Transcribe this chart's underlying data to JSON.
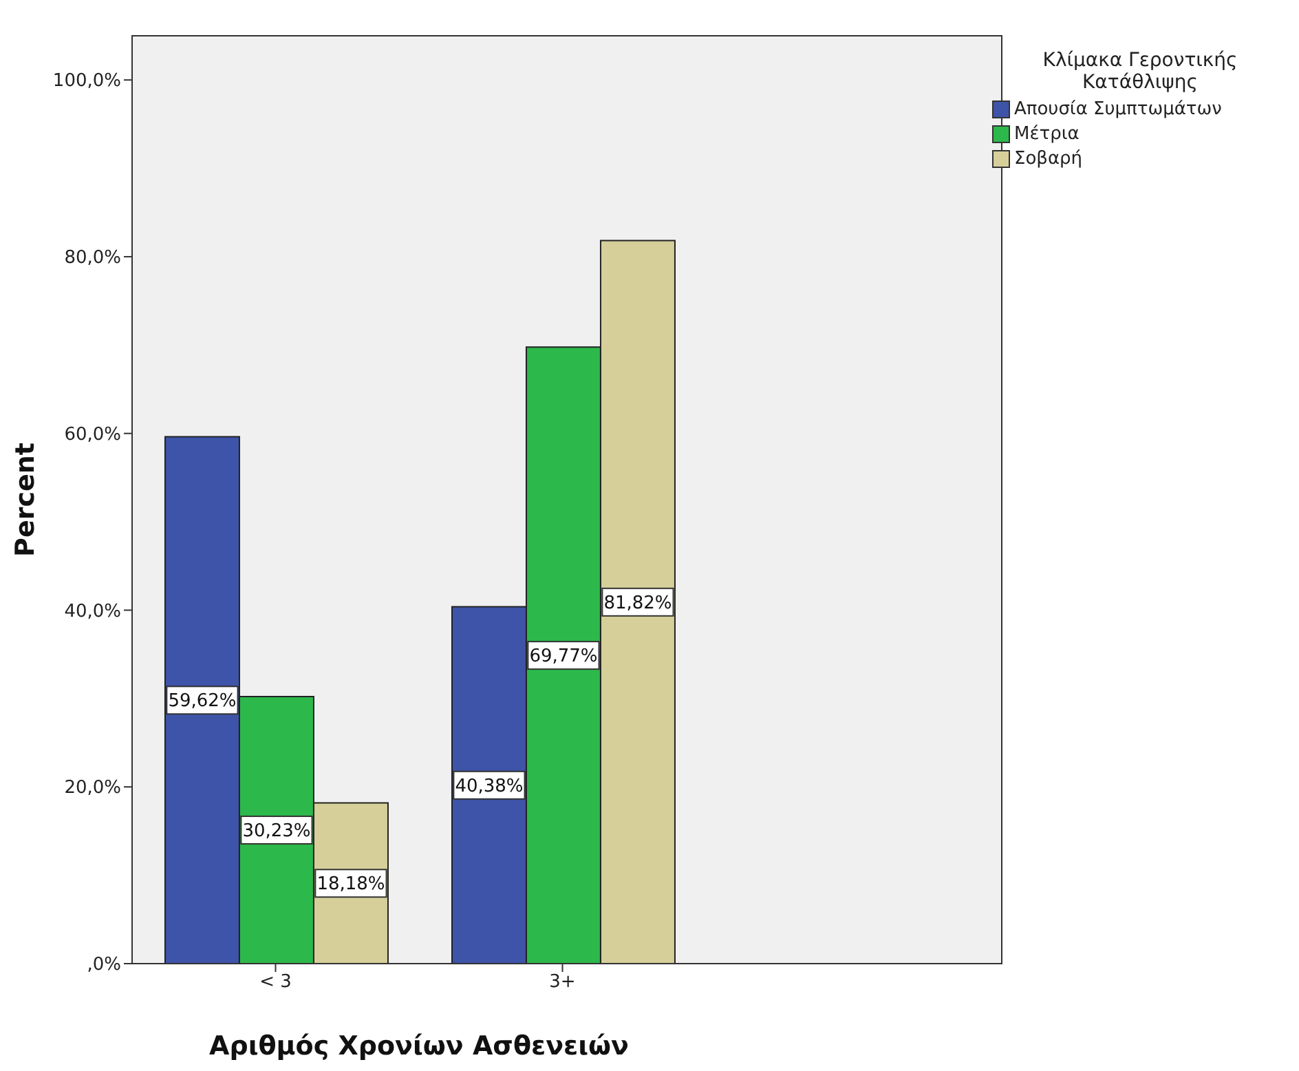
{
  "chart_data": {
    "type": "bar",
    "xlabel": "Αριθμός Χρονίων Ασθενειών",
    "ylabel": "Percent",
    "legend_title": "Κλίμακα Γεροντικής Κατάθλιψης",
    "categories": [
      "< 3",
      "3+"
    ],
    "series": [
      {
        "name": "Απουσία Συμπτωμάτων",
        "color": "#3e54a8",
        "values": [
          59.62,
          40.38
        ],
        "value_labels": [
          "59,62%",
          "40,38%"
        ]
      },
      {
        "name": "Μέτρια",
        "color": "#2db84b",
        "values": [
          30.23,
          69.77
        ],
        "value_labels": [
          "30,23%",
          "69,77%"
        ]
      },
      {
        "name": "Σοβαρή",
        "color": "#d6cf9a",
        "values": [
          18.18,
          81.82
        ],
        "value_labels": [
          "18,18%",
          "81,82%"
        ]
      }
    ],
    "ylim": [
      0,
      105
    ],
    "yticks": [
      {
        "value": 0,
        "label": ",0%"
      },
      {
        "value": 20,
        "label": "20,0%"
      },
      {
        "value": 40,
        "label": "40,0%"
      },
      {
        "value": 60,
        "label": "60,0%"
      },
      {
        "value": 80,
        "label": "80,0%"
      },
      {
        "value": 100,
        "label": "100,0%"
      }
    ],
    "legend": "top right"
  }
}
